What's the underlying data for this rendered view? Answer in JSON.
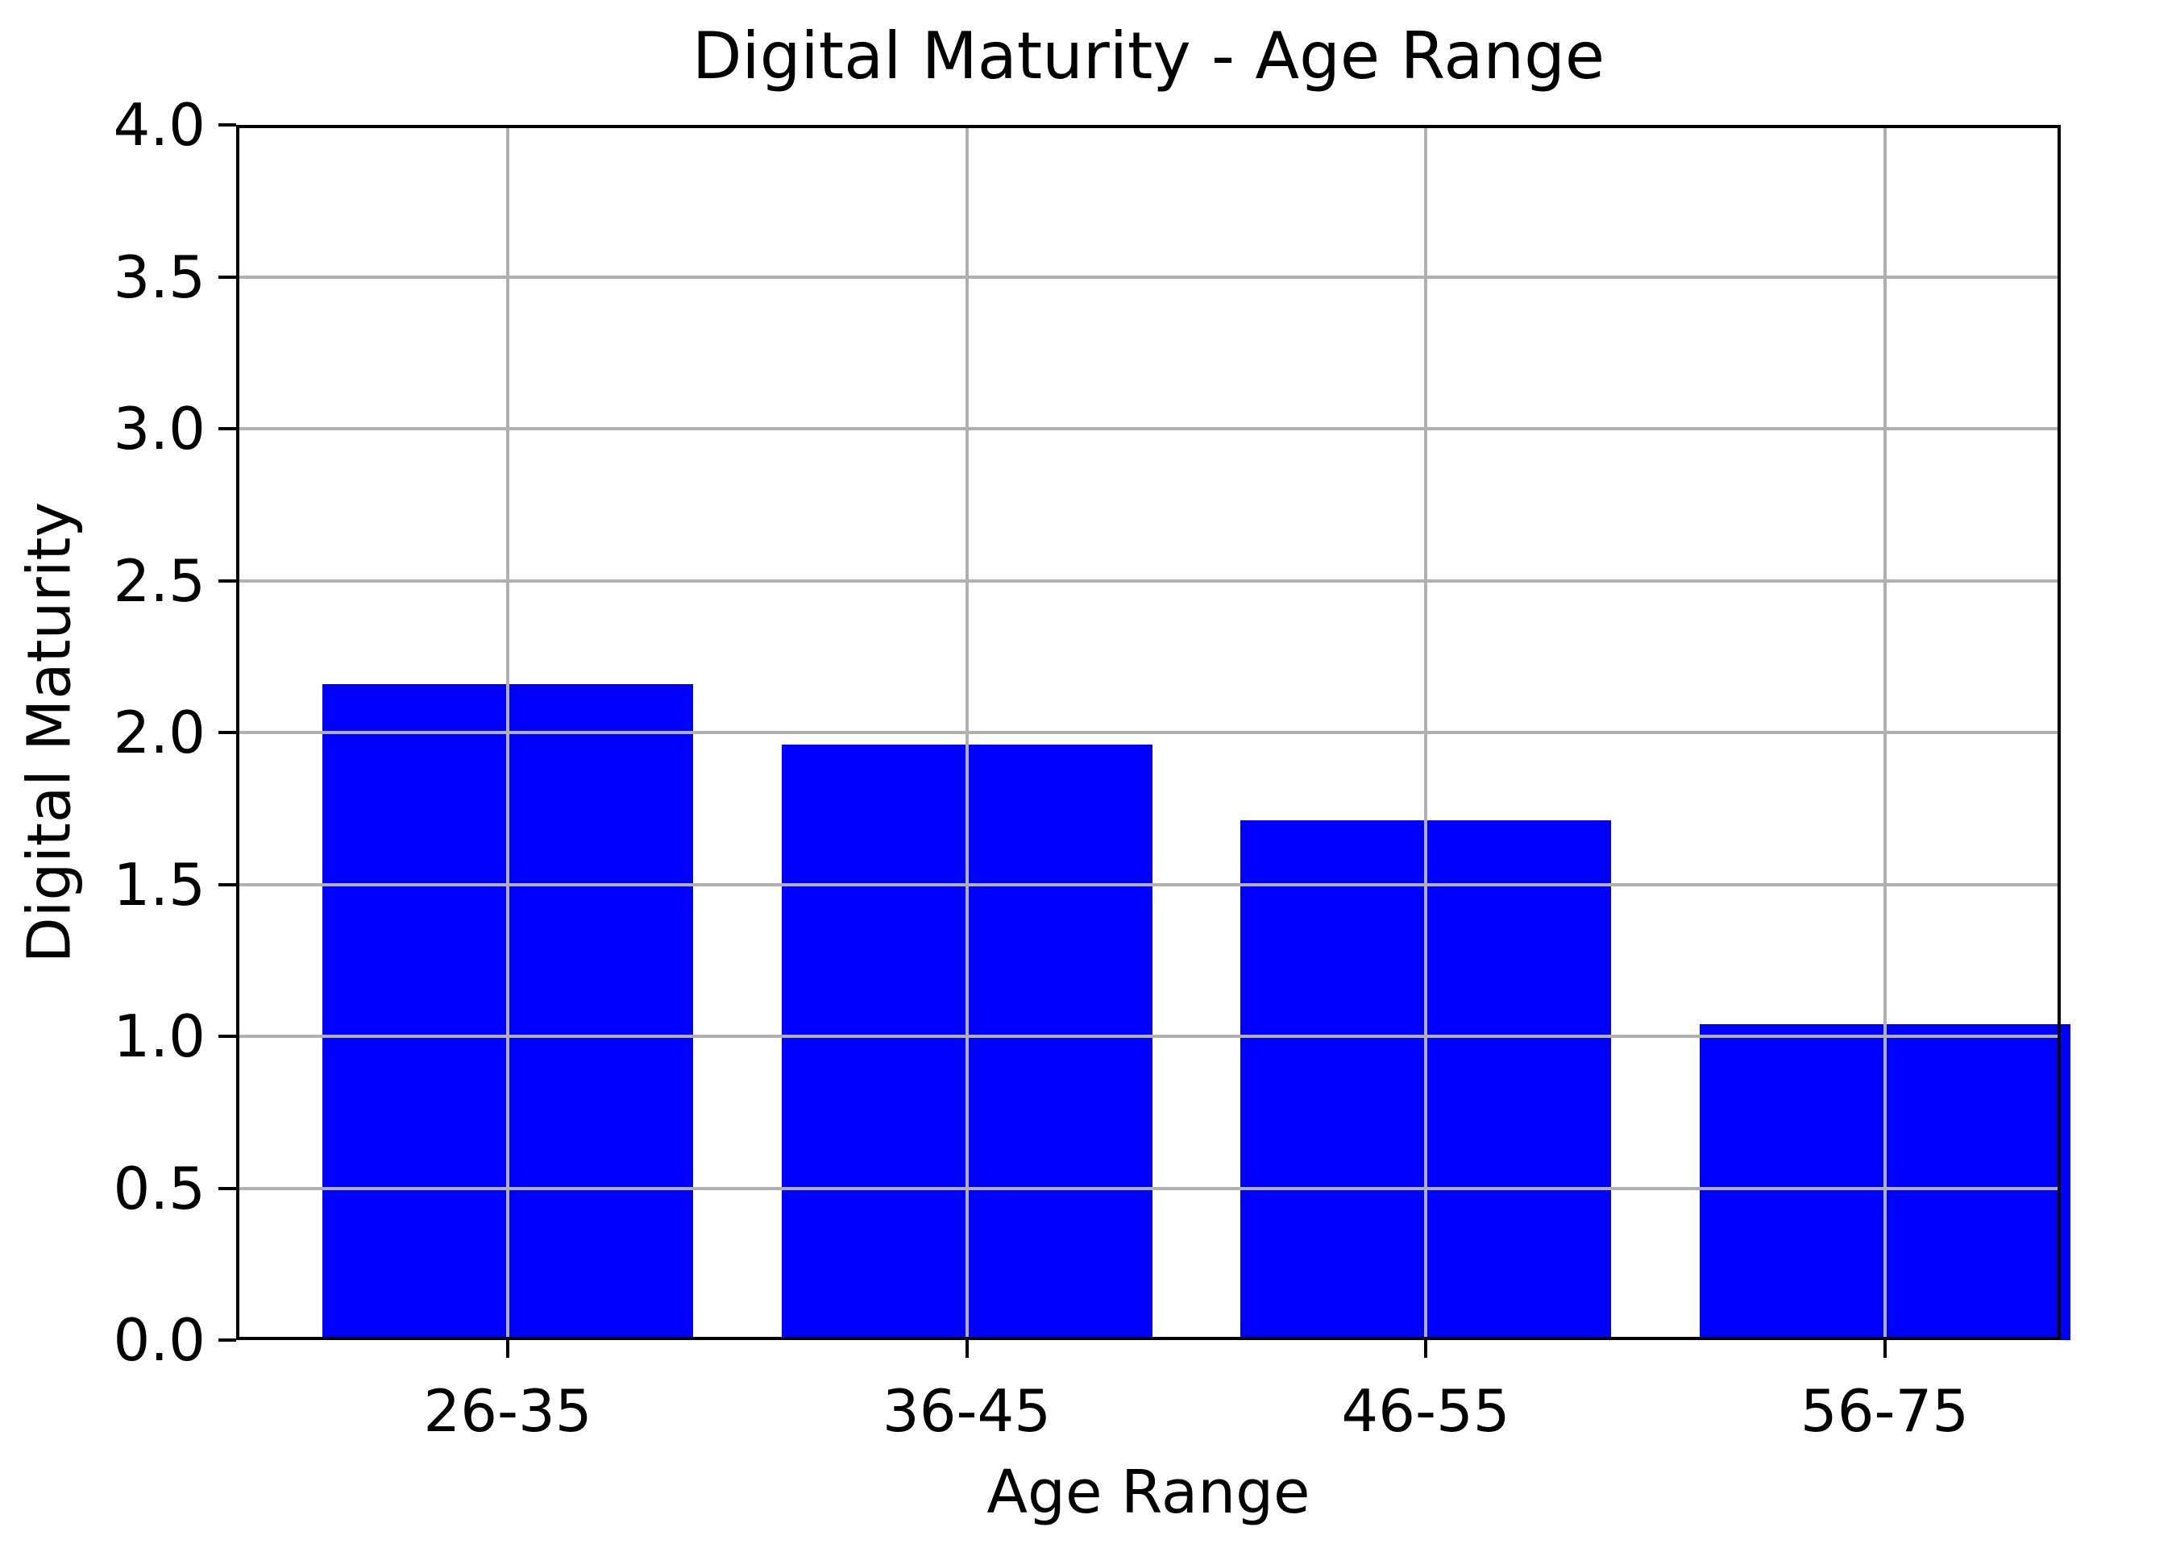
{
  "chart_data": {
    "type": "bar",
    "title": "Digital Maturity - Age Range",
    "xlabel": "Age Range",
    "ylabel": "Digital Maturity",
    "categories": [
      "26-35",
      "36-45",
      "46-55",
      "56-75"
    ],
    "values": [
      2.16,
      1.96,
      1.71,
      1.04
    ],
    "ylim": [
      0,
      4
    ],
    "ytick_step": 0.5,
    "ytick_labels": [
      "0.0",
      "0.5",
      "1.0",
      "1.5",
      "2.0",
      "2.5",
      "3.0",
      "3.5",
      "4.0"
    ],
    "legend": null,
    "grid": true,
    "grid_over_bars": true,
    "bar_color": "#0000ff",
    "grid_color": "#b0b0b0",
    "axis_color": "#000000",
    "text_color": "#000000",
    "background_color": "#ffffff"
  }
}
